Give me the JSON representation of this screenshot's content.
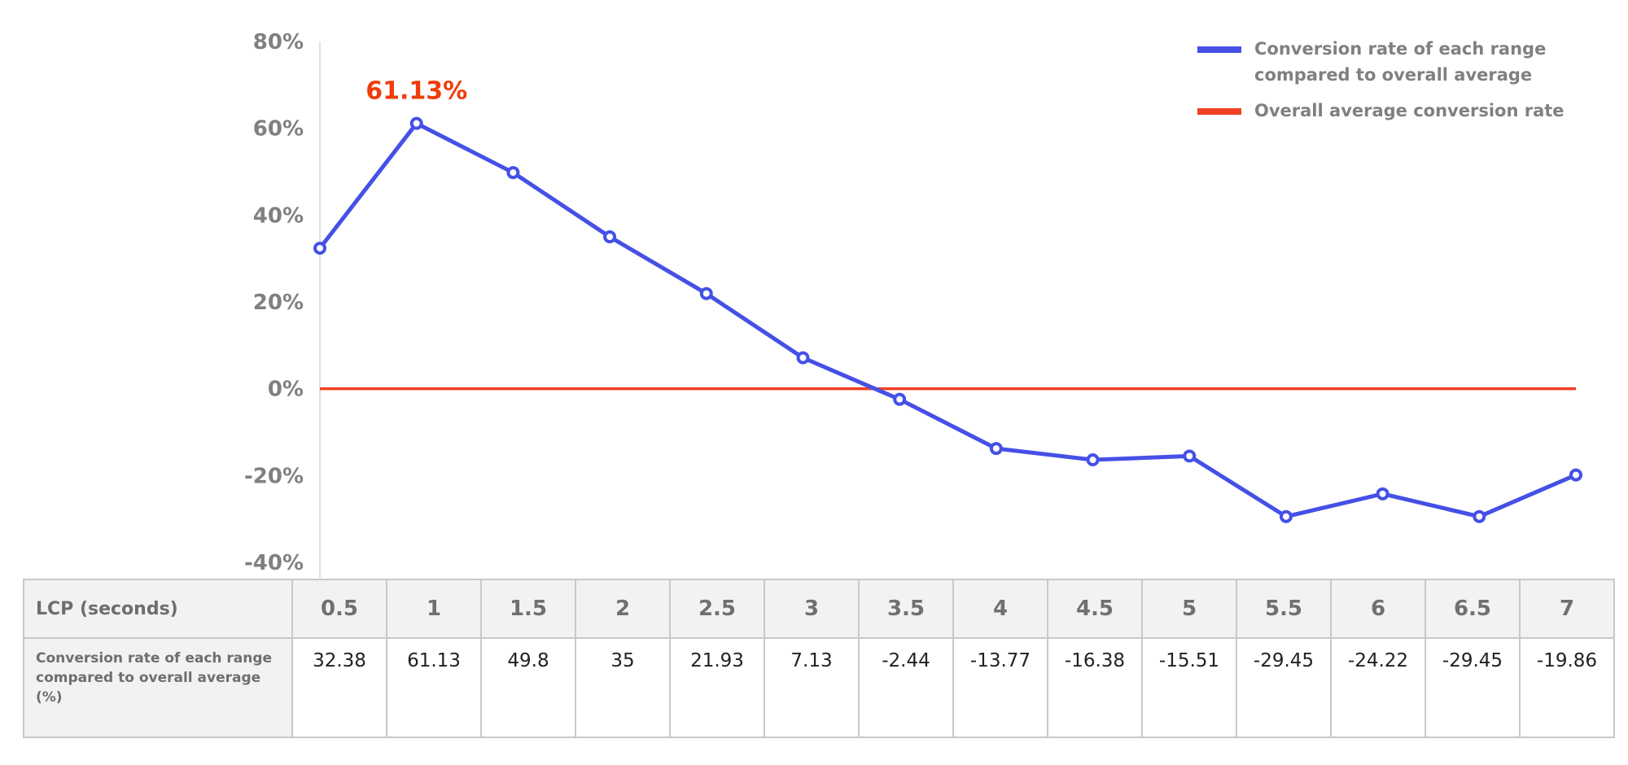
{
  "chart_data": {
    "type": "line",
    "x": [
      0.5,
      1,
      1.5,
      2,
      2.5,
      3,
      3.5,
      4,
      4.5,
      5,
      5.5,
      6,
      6.5,
      7
    ],
    "series": [
      {
        "name": "Conversion rate of each range compared to overall average",
        "color": "#4550e6",
        "values": [
          32.38,
          61.13,
          49.8,
          35,
          21.93,
          7.13,
          -2.44,
          -13.77,
          -16.38,
          -15.51,
          -29.45,
          -24.22,
          -29.45,
          -19.86
        ]
      },
      {
        "name": "Overall average conversion rate",
        "color": "#f04023",
        "values": [
          0,
          0,
          0,
          0,
          0,
          0,
          0,
          0,
          0,
          0,
          0,
          0,
          0,
          0
        ]
      }
    ],
    "ylim": [
      -40,
      80
    ],
    "yticks": [
      "80%",
      "60%",
      "40%",
      "20%",
      "0%",
      "-20%",
      "-40%"
    ],
    "ytick_values": [
      80,
      60,
      40,
      20,
      0,
      -20,
      -40
    ],
    "annotation": {
      "text": "61.13%",
      "x": 1,
      "y": 61.13,
      "color": "#f03c0a"
    },
    "legend_position": "top-right",
    "grid": false
  },
  "table": {
    "row1_header": "LCP (seconds)",
    "row1": [
      "0.5",
      "1",
      "1.5",
      "2",
      "2.5",
      "3",
      "3.5",
      "4",
      "4.5",
      "5",
      "5.5",
      "6",
      "6.5",
      "7"
    ],
    "row2_header": "Conversion rate of each range compared to overall average (%)",
    "row2": [
      "32.38",
      "61.13",
      "49.8",
      "35",
      "21.93",
      "7.13",
      "-2.44",
      "-13.77",
      "-16.38",
      "-15.51",
      "-29.45",
      "-24.22",
      "-29.45",
      "-19.86"
    ]
  }
}
